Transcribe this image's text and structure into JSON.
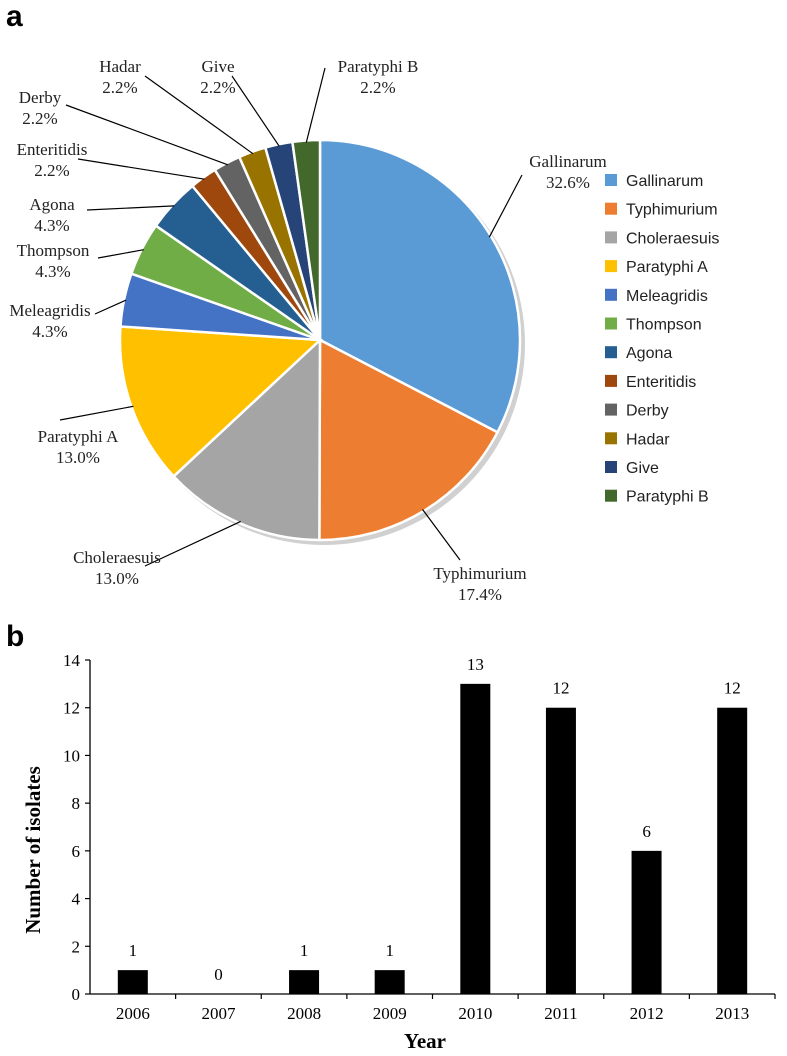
{
  "chart_data": [
    {
      "type": "pie",
      "panel_label": "a",
      "slices": [
        {
          "name": "Gallinarum",
          "pct": "32.6%",
          "value": 32.6,
          "color": "#5b9bd5"
        },
        {
          "name": "Typhimurium",
          "pct": "17.4%",
          "value": 17.4,
          "color": "#ed7d31"
        },
        {
          "name": "Choleraesuis",
          "pct": "13.0%",
          "value": 13.0,
          "color": "#a5a5a5"
        },
        {
          "name": "Paratyphi A",
          "pct": "13.0%",
          "value": 13.0,
          "color": "#ffc000"
        },
        {
          "name": "Meleagridis",
          "pct": "4.3%",
          "value": 4.3,
          "color": "#4472c4"
        },
        {
          "name": "Thompson",
          "pct": "4.3%",
          "value": 4.3,
          "color": "#70ad47"
        },
        {
          "name": "Agona",
          "pct": "4.3%",
          "value": 4.3,
          "color": "#255e91"
        },
        {
          "name": "Enteritidis",
          "pct": "2.2%",
          "value": 2.2,
          "color": "#9e480e"
        },
        {
          "name": "Derby",
          "pct": "2.2%",
          "value": 2.2,
          "color": "#636363"
        },
        {
          "name": "Hadar",
          "pct": "2.2%",
          "value": 2.2,
          "color": "#997300"
        },
        {
          "name": "Give",
          "pct": "2.2%",
          "value": 2.2,
          "color": "#264478"
        },
        {
          "name": "Paratyphi B",
          "pct": "2.2%",
          "value": 2.2,
          "color": "#43682b"
        }
      ],
      "legend_position": "right"
    },
    {
      "type": "bar",
      "panel_label": "b",
      "categories": [
        "2006",
        "2007",
        "2008",
        "2009",
        "2010",
        "2011",
        "2012",
        "2013"
      ],
      "values": [
        1,
        0,
        1,
        1,
        13,
        12,
        6,
        12
      ],
      "data_labels": [
        "1",
        "0",
        "1",
        "1",
        "13",
        "12",
        "6",
        "12"
      ],
      "xlabel": "Year",
      "ylabel": "Number of isolates",
      "ylim": [
        0,
        14
      ],
      "yticks": [
        "0",
        "2",
        "4",
        "6",
        "8",
        "10",
        "12",
        "14"
      ],
      "bar_color": "#000000"
    }
  ]
}
